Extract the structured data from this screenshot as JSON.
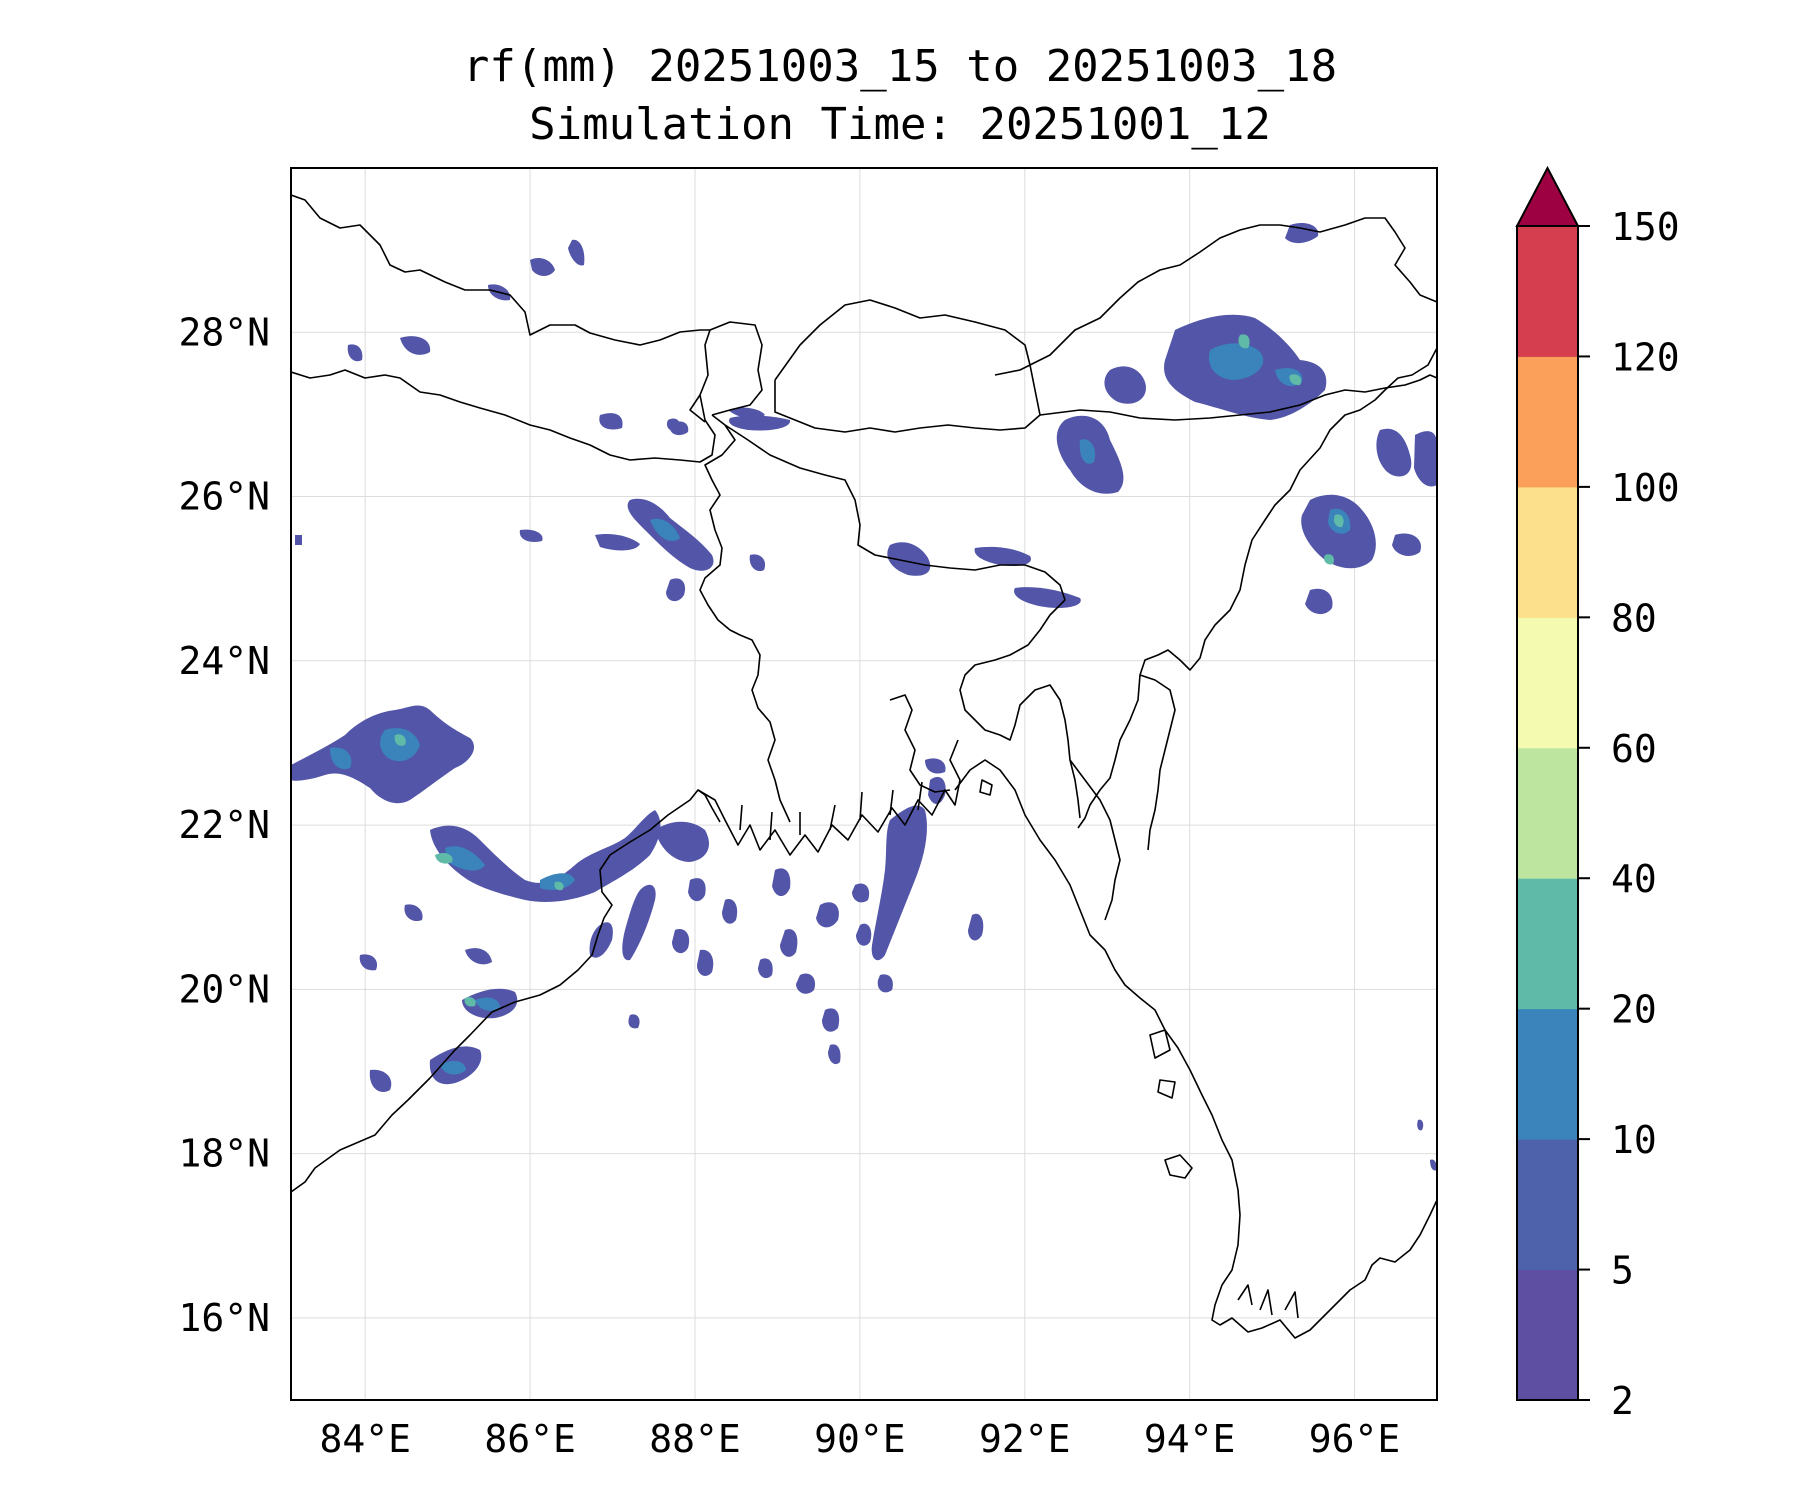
{
  "title": {
    "line1": "rf(mm) 20251003_15 to 20251003_18",
    "line2": "Simulation Time: 20251001_12"
  },
  "map": {
    "lon_range": [
      83.1,
      97.0
    ],
    "lat_range": [
      15.0,
      30.0
    ],
    "lon_ticks": [
      84,
      86,
      88,
      90,
      92,
      94,
      96
    ],
    "lat_ticks": [
      16,
      18,
      20,
      22,
      24,
      26,
      28
    ],
    "lon_tick_labels": [
      "84°E",
      "86°E",
      "88°E",
      "90°E",
      "92°E",
      "94°E",
      "96°E"
    ],
    "lat_tick_labels": [
      "16°N",
      "18°N",
      "20°N",
      "22°N",
      "24°N",
      "26°N",
      "28°N"
    ],
    "gridlines": true
  },
  "colorbar": {
    "levels": [
      2,
      5,
      10,
      20,
      40,
      60,
      80,
      100,
      120,
      150
    ],
    "level_labels": [
      "2",
      "5",
      "10",
      "20",
      "40",
      "60",
      "80",
      "100",
      "120",
      "150"
    ],
    "colors": [
      "#5e4fa2",
      "#4e62ab",
      "#3a84bb",
      "#5fbaa8",
      "#bde5a0",
      "#f4fbb0",
      "#fde08b",
      "#fba05b",
      "#d53e4f"
    ],
    "extend_color": "#9e0142",
    "extend": "max"
  },
  "rain_colors": {
    "light": "#5356a8",
    "moderate": "#3a84bb",
    "heavy": "#5fbaa8"
  }
}
